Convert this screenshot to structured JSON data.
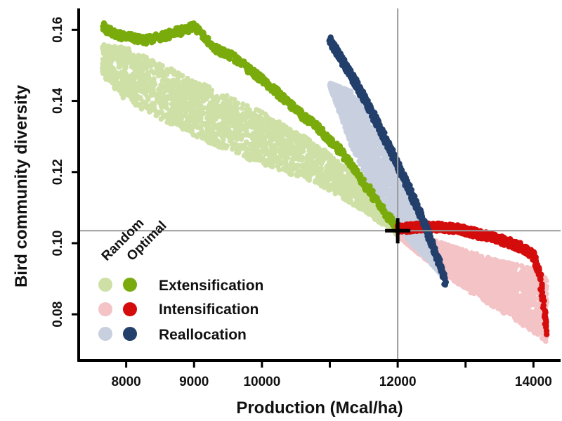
{
  "chart_data": {
    "type": "scatter",
    "xlabel": "Production (Mcal/ha)",
    "ylabel": "Bird community diversity",
    "xlim": [
      7300,
      14400
    ],
    "ylim": [
      0.067,
      0.166
    ],
    "x_ticks": [
      8000,
      9000,
      10000,
      11000,
      12000,
      13000,
      14000
    ],
    "x_tick_labels": [
      "8000",
      "9000",
      "10000",
      "",
      "12000",
      "",
      "14000"
    ],
    "y_ticks": [
      0.08,
      0.1,
      0.12,
      0.14,
      0.16
    ],
    "y_tick_labels": [
      "0.08",
      "0.10",
      "0.12",
      "0.14",
      "0.16"
    ],
    "reference_point": {
      "x": 12000,
      "y": 0.1035
    },
    "legend": {
      "column_headers": [
        "Random",
        "Optimal"
      ],
      "entries": [
        "Extensification",
        "Intensification",
        "Reallocation"
      ],
      "placement": "bottom-left"
    },
    "series": [
      {
        "name": "Extensification",
        "kind": "Random",
        "color": "#cfe0a6",
        "band_x": [
          7650,
          8000,
          9000,
          10000,
          10800,
          11500,
          12000
        ],
        "band_lower": [
          0.147,
          0.14,
          0.13,
          0.122,
          0.117,
          0.109,
          0.102
        ],
        "band_upper": [
          0.156,
          0.155,
          0.146,
          0.137,
          0.128,
          0.117,
          0.106
        ]
      },
      {
        "name": "Extensification",
        "kind": "Optimal",
        "color": "#7aab0c",
        "x": [
          7650,
          7800,
          8000,
          8300,
          8700,
          9000,
          9300,
          9600,
          10000,
          10300,
          10600,
          10900,
          11200,
          11500,
          11800,
          12000
        ],
        "y": [
          0.161,
          0.159,
          0.158,
          0.157,
          0.159,
          0.161,
          0.155,
          0.152,
          0.146,
          0.141,
          0.136,
          0.131,
          0.125,
          0.117,
          0.109,
          0.104
        ]
      },
      {
        "name": "Intensification",
        "kind": "Random",
        "color": "#f3c3c6",
        "band_x": [
          12000,
          12500,
          13000,
          13500,
          14000,
          14200
        ],
        "band_lower": [
          0.102,
          0.094,
          0.087,
          0.081,
          0.075,
          0.072
        ],
        "band_upper": [
          0.104,
          0.101,
          0.098,
          0.095,
          0.093,
          0.09
        ]
      },
      {
        "name": "Intensification",
        "kind": "Optimal",
        "color": "#d40c0c",
        "x": [
          12000,
          12300,
          12600,
          12900,
          13200,
          13500,
          13800,
          14000,
          14100,
          14150,
          14200
        ],
        "y": [
          0.104,
          0.1045,
          0.1045,
          0.104,
          0.1025,
          0.101,
          0.099,
          0.0965,
          0.091,
          0.083,
          0.075
        ]
      },
      {
        "name": "Reallocation",
        "kind": "Random",
        "color": "#c8d0df",
        "band_x": [
          11000,
          11300,
          11600,
          11900,
          12100,
          12400,
          12700
        ],
        "band_lower": [
          0.144,
          0.128,
          0.116,
          0.107,
          0.102,
          0.096,
          0.09
        ],
        "band_upper": [
          0.145,
          0.143,
          0.135,
          0.125,
          0.115,
          0.102,
          0.091
        ]
      },
      {
        "name": "Reallocation",
        "kind": "Optimal",
        "color": "#233f6b",
        "x": [
          11000,
          11200,
          11500,
          11800,
          12000,
          12200,
          12400,
          12600,
          12700
        ],
        "y": [
          0.157,
          0.151,
          0.141,
          0.13,
          0.122,
          0.114,
          0.105,
          0.095,
          0.089
        ]
      }
    ]
  }
}
